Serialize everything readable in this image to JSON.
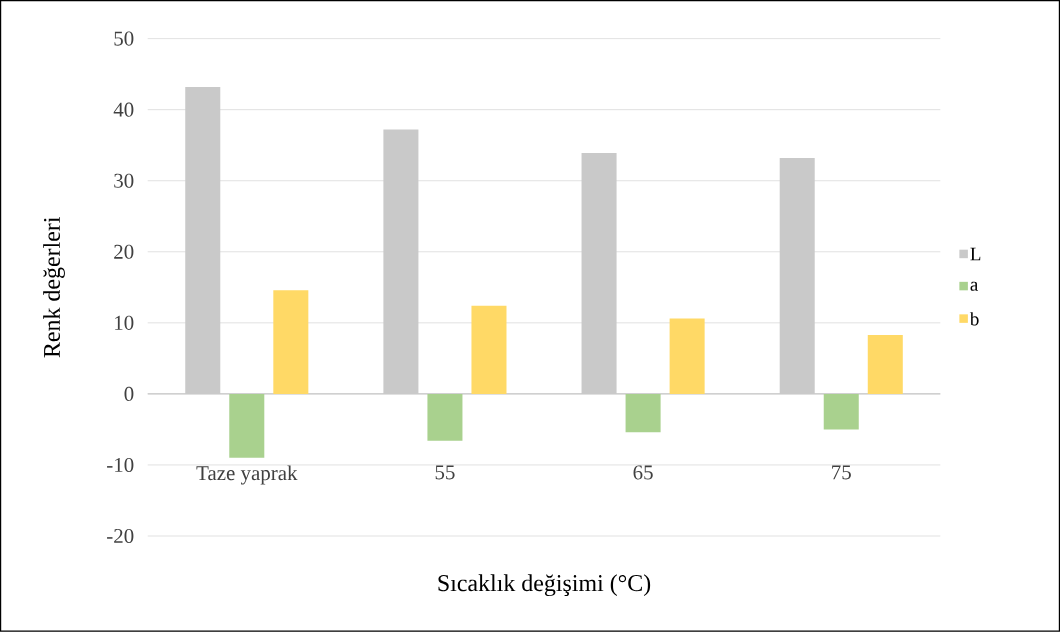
{
  "chart_data": {
    "type": "bar",
    "xlabel": "Sıcaklık değişimi (°C)",
    "ylabel": "Renk değerleri",
    "categories": [
      "Taze yaprak",
      "55",
      "65",
      "75"
    ],
    "series": [
      {
        "name": "L",
        "color": "#c9c9c9",
        "values": [
          43.2,
          37.2,
          33.9,
          33.2
        ]
      },
      {
        "name": "a",
        "color": "#a9d18e",
        "values": [
          -9.0,
          -6.6,
          -5.4,
          -5.0
        ]
      },
      {
        "name": "b",
        "color": "#ffd966",
        "values": [
          14.6,
          12.4,
          10.6,
          8.3
        ]
      }
    ],
    "ylim": [
      -20,
      50
    ],
    "yticks": [
      -20,
      -10,
      0,
      10,
      20,
      30,
      40,
      50
    ],
    "grid": "y",
    "legend": "right"
  }
}
